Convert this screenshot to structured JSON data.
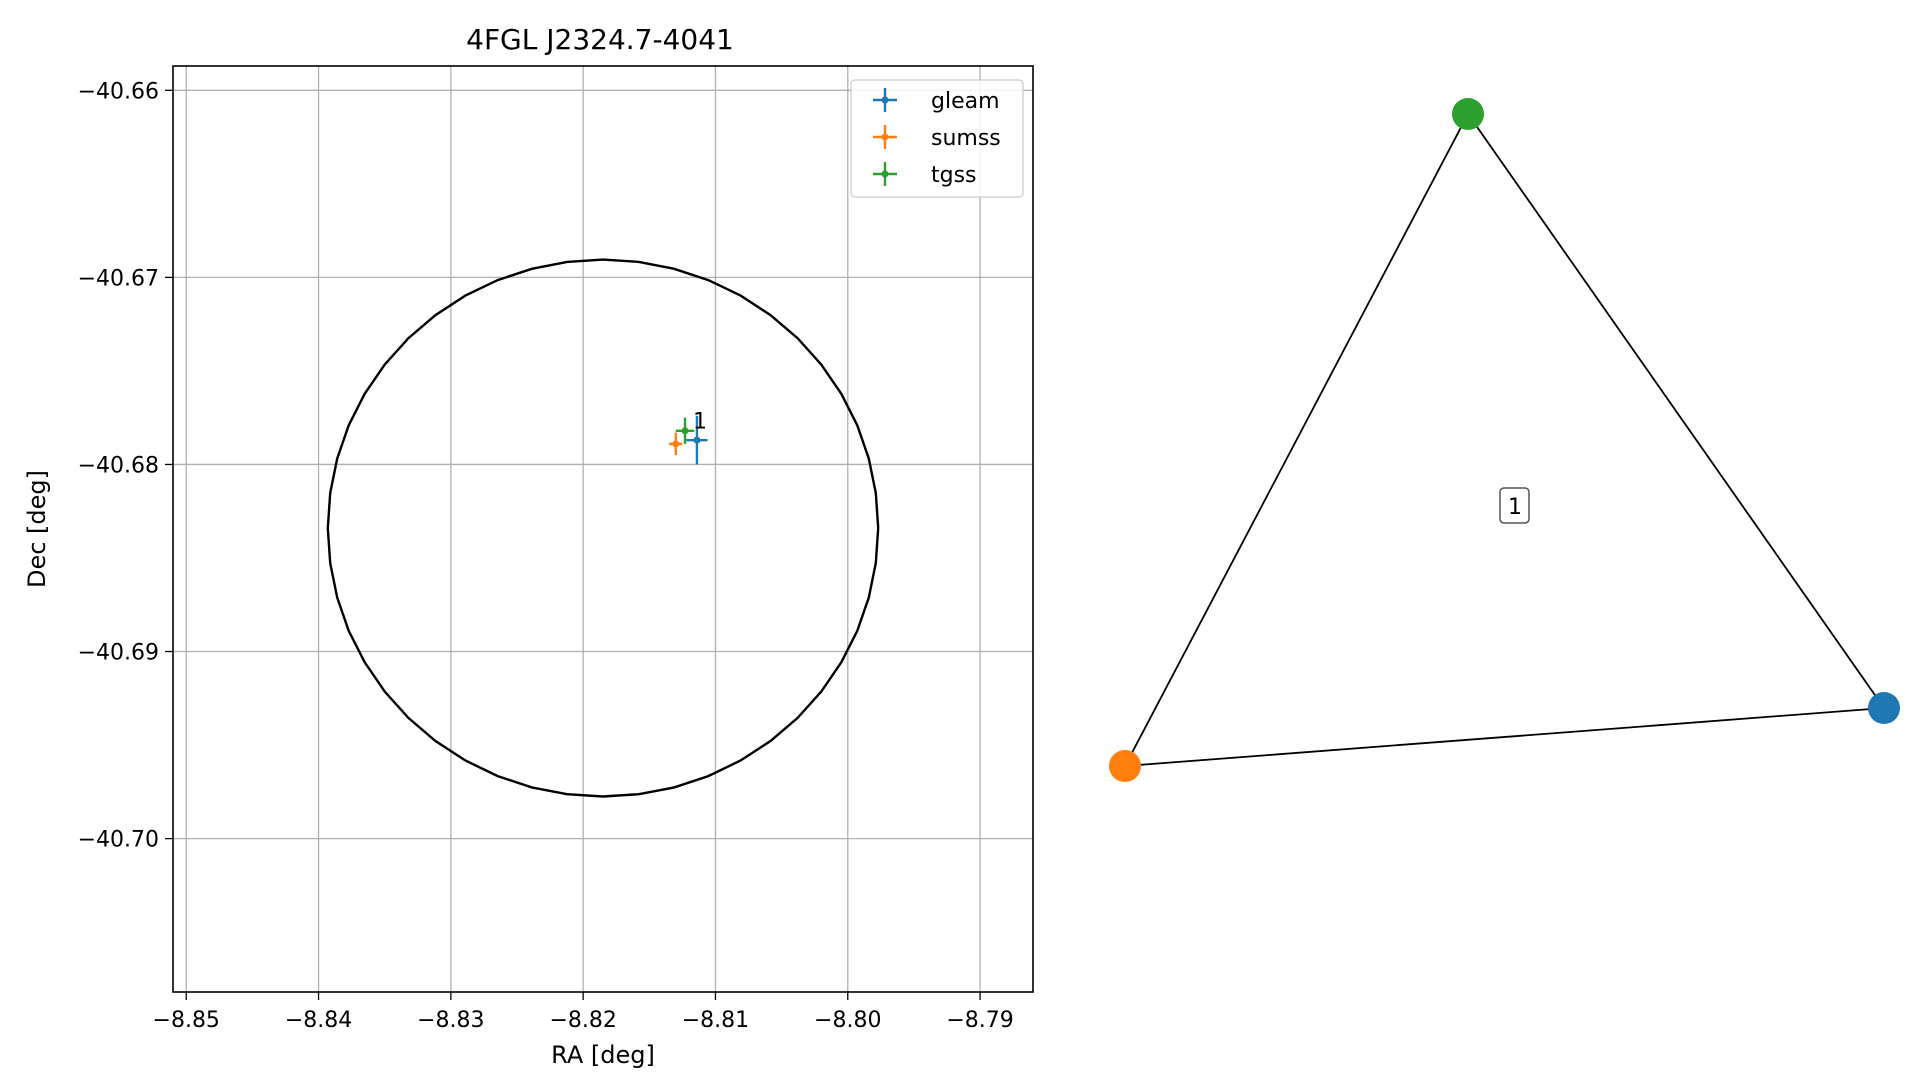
{
  "chart_data": [
    {
      "type": "scatter",
      "title": "4FGL J2324.7-4041",
      "xlabel": "RA [deg]",
      "ylabel": "Dec [deg]",
      "xlim": [
        -8.851,
        -8.786
      ],
      "ylim": [
        -40.7082,
        -40.6587
      ],
      "xticks": [
        -8.85,
        -8.84,
        -8.83,
        -8.82,
        -8.81,
        -8.8,
        -8.79
      ],
      "xtick_labels": [
        "−8.85",
        "−8.84",
        "−8.83",
        "−8.82",
        "−8.81",
        "−8.80",
        "−8.79"
      ],
      "yticks": [
        -40.66,
        -40.67,
        -40.68,
        -40.69,
        -40.7
      ],
      "ytick_labels": [
        "−40.66",
        "−40.67",
        "−40.68",
        "−40.69",
        "−40.70"
      ],
      "grid": true,
      "legend_position": "top-right",
      "series": [
        {
          "name": "gleam",
          "color": "#1f77b4",
          "x": -8.8114,
          "y": -40.6787,
          "xerr": 0.0008,
          "yerr": 0.0013
        },
        {
          "name": "sumss",
          "color": "#ff7f0e",
          "x": -8.813,
          "y": -40.6789,
          "xerr": 0.0005,
          "yerr": 0.0006
        },
        {
          "name": "tgss",
          "color": "#2ca02c",
          "x": -8.8123,
          "y": -40.6782,
          "xerr": 0.0007,
          "yerr": 0.0007
        }
      ],
      "annotation": {
        "text": "1",
        "x": -8.8114,
        "y": -40.6777
      },
      "ellipse": {
        "center_ra": -8.8185,
        "center_dec": -40.6834,
        "semi_ra": 0.0208,
        "semi_dec": 0.01435,
        "color": "#000000"
      }
    },
    {
      "type": "network",
      "nodes": [
        {
          "id": "gleam",
          "color": "#1f77b4"
        },
        {
          "id": "sumss",
          "color": "#ff7f0e"
        },
        {
          "id": "tgss",
          "color": "#2ca02c"
        }
      ],
      "edges": [
        [
          "gleam",
          "sumss"
        ],
        [
          "sumss",
          "tgss"
        ],
        [
          "tgss",
          "gleam"
        ]
      ],
      "label": "1"
    }
  ]
}
